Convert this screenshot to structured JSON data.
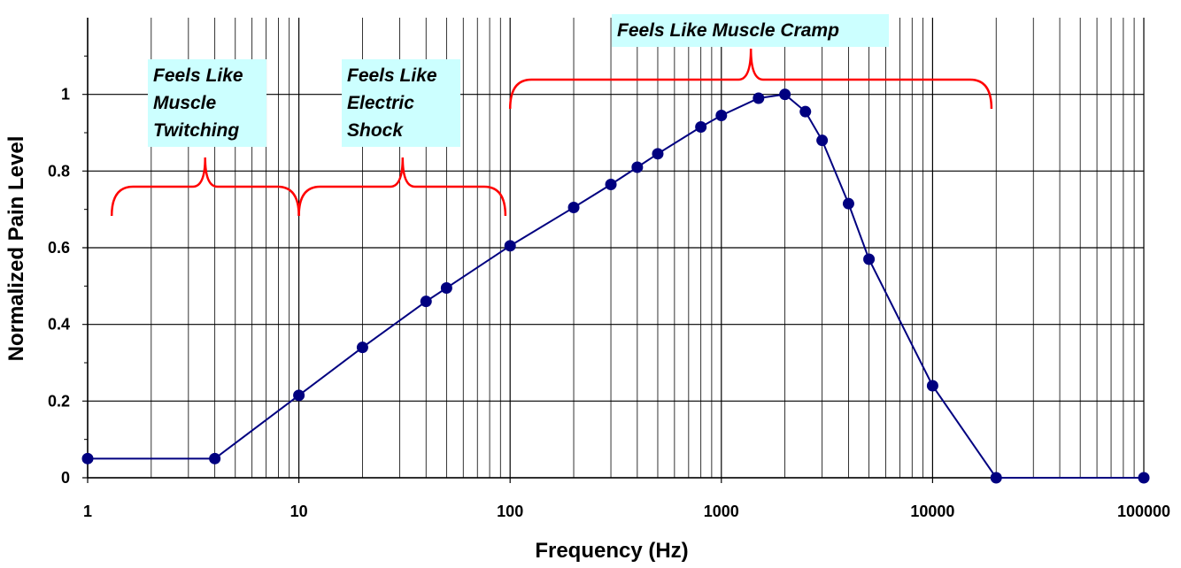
{
  "chart_data": {
    "type": "line",
    "xscale": "log",
    "xlabel": "Frequency (Hz)",
    "ylabel": "Normalized Pain Level",
    "xlim": [
      1,
      100000
    ],
    "ylim": [
      0,
      1.2
    ],
    "x_ticks": [
      1,
      10,
      100,
      1000,
      10000,
      100000
    ],
    "x_tick_labels": [
      "1",
      "10",
      "100",
      "1000",
      "10000",
      "100000"
    ],
    "y_ticks": [
      0,
      0.2,
      0.4,
      0.6,
      0.8,
      1
    ],
    "y_tick_labels": [
      "0",
      "0.2",
      "0.4",
      "0.6",
      "0.8",
      "1"
    ],
    "grid": true,
    "line_color": "#000080",
    "marker_color": "#000080",
    "bracket_color": "#ff0000",
    "note_bg": "#ccffff",
    "series": [
      {
        "name": "Normalized Pain Level",
        "x": [
          1,
          4,
          10,
          20,
          40,
          50,
          100,
          200,
          300,
          400,
          500,
          800,
          1000,
          1500,
          2000,
          2500,
          3000,
          4000,
          5000,
          10000,
          20000,
          100000
        ],
        "values": [
          0.05,
          0.05,
          0.215,
          0.34,
          0.46,
          0.495,
          0.605,
          0.705,
          0.765,
          0.81,
          0.845,
          0.915,
          0.945,
          0.99,
          1.0,
          0.955,
          0.88,
          0.715,
          0.57,
          0.24,
          0.0,
          0.0
        ]
      }
    ],
    "annotations": [
      {
        "lines": [
          "Feels Like",
          "Muscle",
          "Twitching"
        ],
        "range": [
          1.3,
          10
        ],
        "peak_x": 3.6
      },
      {
        "lines": [
          "Feels Like",
          "Electric",
          "Shock"
        ],
        "range": [
          10,
          95
        ],
        "peak_x": 31
      },
      {
        "lines": [
          "Feels Like Muscle Cramp"
        ],
        "range": [
          100,
          19000
        ],
        "peak_x": 1380
      }
    ]
  }
}
